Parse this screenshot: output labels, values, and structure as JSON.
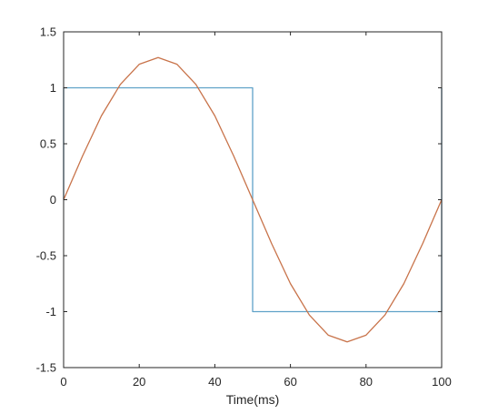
{
  "chart_data": {
    "type": "line",
    "xlabel": "Time(ms)",
    "ylabel": "",
    "title": "",
    "xlim": [
      0,
      100
    ],
    "ylim": [
      -1.5,
      1.5
    ],
    "xticks": [
      0,
      20,
      40,
      60,
      80,
      100
    ],
    "xtick_labels": [
      "0",
      "20",
      "40",
      "60",
      "80",
      "100"
    ],
    "yticks": [
      1.5,
      1,
      0.5,
      0,
      -0.5,
      -1,
      -1.5
    ],
    "ytick_labels": [
      "1.5",
      "1",
      "0.5",
      "0",
      "-0.5",
      "-1",
      "-1.5"
    ],
    "grid": false,
    "legend": false,
    "series": [
      {
        "color": "#5fa2c8",
        "x": [
          0,
          0,
          50,
          50,
          100,
          100
        ],
        "y": [
          0,
          1,
          1,
          -1,
          -1,
          1
        ]
      },
      {
        "color": "#c8734a",
        "x": [
          0,
          5,
          10,
          15,
          20,
          25,
          30,
          35,
          40,
          45,
          50,
          55,
          60,
          65,
          70,
          75,
          80,
          85,
          90,
          95,
          100
        ],
        "y": [
          0,
          0.39,
          0.75,
          1.03,
          1.21,
          1.27,
          1.21,
          1.03,
          0.75,
          0.39,
          0,
          -0.39,
          -0.75,
          -1.03,
          -1.21,
          -1.27,
          -1.21,
          -1.03,
          -0.75,
          -0.39,
          0
        ]
      }
    ]
  }
}
